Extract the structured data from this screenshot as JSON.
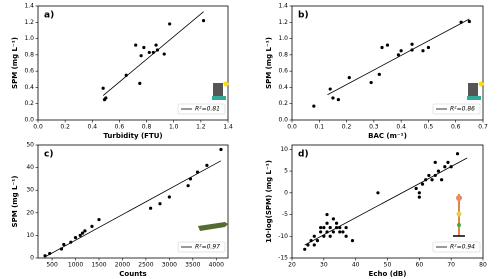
{
  "chart_data": [
    {
      "type": "scatter",
      "title": "a)",
      "xlabel": "Turbidity (FTU)",
      "ylabel": "SPM (mg L⁻¹)",
      "xlim": [
        0,
        1.4
      ],
      "ylim": [
        0,
        1.4
      ],
      "xticks": [
        {
          "value": 0,
          "label": "0.0"
        },
        0.2,
        0.4,
        0.6,
        0.8,
        {
          "value": 1,
          "label": "1.0"
        },
        1.2,
        1.4
      ],
      "yticks": [
        {
          "value": 0,
          "label": "0.0"
        },
        0.2,
        0.4,
        0.6,
        0.8,
        {
          "value": 1,
          "label": "1.0"
        },
        1.2,
        1.4
      ],
      "color": "#000000",
      "x": [
        0.48,
        0.49,
        0.5,
        0.65,
        0.72,
        0.75,
        0.76,
        0.78,
        0.82,
        0.85,
        0.87,
        0.88,
        0.93,
        0.97,
        1.22
      ],
      "y": [
        0.39,
        0.25,
        0.27,
        0.55,
        0.92,
        0.45,
        0.79,
        0.89,
        0.83,
        0.83,
        0.92,
        0.86,
        0.81,
        1.18,
        1.22
      ],
      "fit": {
        "name": "R²=0.81",
        "x": [
          0.48,
          1.22
        ],
        "y": [
          0.3,
          1.33
        ]
      }
    },
    {
      "type": "scatter",
      "title": "b)",
      "xlabel": "BAC (m⁻¹)",
      "ylabel": "SPM (mg L⁻¹)",
      "xlim": [
        0,
        0.7
      ],
      "ylim": [
        0,
        1.4
      ],
      "xticks": [
        {
          "value": 0,
          "label": "0.0"
        },
        0.1,
        0.2,
        0.3,
        0.4,
        0.5,
        0.6,
        0.7
      ],
      "yticks": [
        {
          "value": 0,
          "label": "0.0"
        },
        0.2,
        0.4,
        0.6,
        0.8,
        {
          "value": 1,
          "label": "1.0"
        },
        1.2,
        1.4
      ],
      "color": "#000000",
      "x": [
        0.08,
        0.14,
        0.15,
        0.17,
        0.21,
        0.29,
        0.32,
        0.33,
        0.35,
        0.39,
        0.4,
        0.44,
        0.44,
        0.48,
        0.5,
        0.62,
        0.65
      ],
      "y": [
        0.17,
        0.38,
        0.27,
        0.25,
        0.52,
        0.46,
        0.56,
        0.89,
        0.92,
        0.8,
        0.85,
        0.93,
        0.86,
        0.85,
        0.89,
        1.2,
        1.21
      ],
      "fit": {
        "name": "R²=0.86",
        "x": [
          0.13,
          0.65
        ],
        "y": [
          0.31,
          1.24
        ]
      }
    },
    {
      "type": "scatter",
      "title": "c)",
      "xlabel": "Counts",
      "ylabel": "SPM (mg L⁻¹)",
      "xlim": [
        200,
        4250
      ],
      "ylim": [
        0,
        50
      ],
      "xticks": [
        500,
        1000,
        1500,
        2000,
        2500,
        3000,
        3500,
        4000
      ],
      "yticks": [
        0,
        10,
        20,
        30,
        40,
        50
      ],
      "color": "#000000",
      "x": [
        350,
        450,
        700,
        750,
        900,
        1000,
        1100,
        1150,
        1200,
        1350,
        1500,
        2600,
        2800,
        3000,
        3400,
        3450,
        3600,
        3800,
        4100
      ],
      "y": [
        1,
        2,
        4,
        6,
        7,
        9,
        10,
        11,
        12,
        14,
        17,
        22,
        24,
        27,
        32,
        35,
        38,
        41,
        48
      ],
      "fit": {
        "name": "R²=0.97",
        "x": [
          350,
          4100
        ],
        "y": [
          0.5,
          43
        ]
      }
    },
    {
      "type": "scatter",
      "title": "d)",
      "xlabel": "Echo (dB)",
      "ylabel": "10·log(SPM) (mg L⁻¹)",
      "xlim": [
        20,
        80
      ],
      "ylim": [
        -15,
        11
      ],
      "xticks": [
        20,
        30,
        40,
        50,
        60,
        70,
        80
      ],
      "yticks": [
        -15,
        -10,
        -5,
        0,
        5,
        10
      ],
      "color": "#000000",
      "x": [
        24,
        25,
        26,
        27,
        27,
        28,
        29,
        29,
        30,
        30,
        31,
        31,
        31,
        32,
        32,
        33,
        33,
        34,
        34,
        35,
        35,
        36,
        37,
        37,
        39,
        47,
        59,
        60,
        60,
        61,
        62,
        63,
        64,
        65,
        65,
        66,
        67,
        68,
        69,
        70,
        72
      ],
      "y": [
        -13,
        -12,
        -11,
        -12,
        -10,
        -11,
        -9,
        -8,
        -10,
        -8,
        -9,
        -7,
        -5,
        -8,
        -10,
        -6,
        -9,
        -8,
        -7,
        -9,
        -8,
        -9,
        -10,
        -8,
        -11,
        0,
        1,
        0,
        -1,
        2,
        3,
        4,
        3,
        7,
        4,
        5,
        3,
        6,
        7,
        6,
        9
      ],
      "fit": {
        "name": "R²=0.94",
        "x": [
          24,
          75
        ],
        "y": [
          -12,
          8
        ]
      }
    }
  ]
}
